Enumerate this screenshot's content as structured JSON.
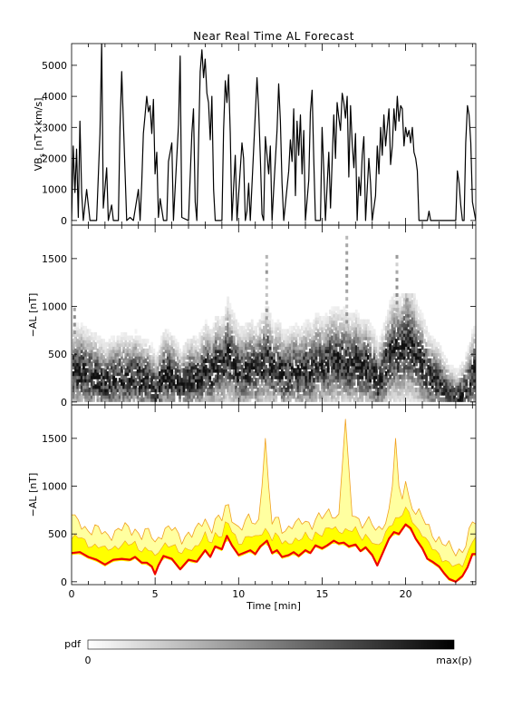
{
  "title": "Near Real Time AL Forecast",
  "chart_data": [
    {
      "type": "line",
      "panel": "vbs",
      "ylabel_main": "VB",
      "ylabel_sub": "s",
      "ylabel_unit": " [nT×km/s]",
      "ylim": [
        -150,
        5700
      ],
      "yticks": [
        0,
        1000,
        2000,
        3000,
        4000,
        5000
      ],
      "xlim": [
        0,
        24.2
      ],
      "series": [
        {
          "values": [
            [
              0,
              0
            ],
            [
              0.1,
              2400
            ],
            [
              0.2,
              900
            ],
            [
              0.3,
              2300
            ],
            [
              0.4,
              100
            ],
            [
              0.5,
              3200
            ],
            [
              0.6,
              900
            ],
            [
              0.7,
              0
            ],
            [
              0.9,
              1000
            ],
            [
              1.1,
              0
            ],
            [
              1.5,
              0
            ],
            [
              1.7,
              2800
            ],
            [
              1.8,
              5700
            ],
            [
              1.9,
              400
            ],
            [
              2.1,
              1700
            ],
            [
              2.2,
              0
            ],
            [
              2.4,
              500
            ],
            [
              2.5,
              0
            ],
            [
              2.8,
              0
            ],
            [
              2.9,
              3000
            ],
            [
              3.0,
              4800
            ],
            [
              3.1,
              3200
            ],
            [
              3.3,
              0
            ],
            [
              3.5,
              100
            ],
            [
              3.7,
              0
            ],
            [
              4.0,
              1000
            ],
            [
              4.1,
              0
            ],
            [
              4.2,
              1200
            ],
            [
              4.3,
              2800
            ],
            [
              4.4,
              3400
            ],
            [
              4.5,
              4000
            ],
            [
              4.6,
              3500
            ],
            [
              4.7,
              3700
            ],
            [
              4.8,
              2800
            ],
            [
              4.9,
              3900
            ],
            [
              5.0,
              1500
            ],
            [
              5.1,
              2200
            ],
            [
              5.2,
              100
            ],
            [
              5.3,
              700
            ],
            [
              5.5,
              0
            ],
            [
              5.7,
              0
            ],
            [
              5.8,
              1900
            ],
            [
              6.0,
              2500
            ],
            [
              6.1,
              0
            ],
            [
              6.4,
              3100
            ],
            [
              6.5,
              5300
            ],
            [
              6.6,
              100
            ],
            [
              7.0,
              0
            ],
            [
              7.2,
              2800
            ],
            [
              7.3,
              3600
            ],
            [
              7.4,
              600
            ],
            [
              7.5,
              0
            ],
            [
              7.7,
              4800
            ],
            [
              7.8,
              5500
            ],
            [
              7.9,
              4600
            ],
            [
              8.0,
              5200
            ],
            [
              8.1,
              4100
            ],
            [
              8.2,
              3800
            ],
            [
              8.3,
              2600
            ],
            [
              8.4,
              4000
            ],
            [
              8.5,
              1000
            ],
            [
              8.6,
              0
            ],
            [
              9.0,
              0
            ],
            [
              9.1,
              2900
            ],
            [
              9.2,
              4500
            ],
            [
              9.3,
              3800
            ],
            [
              9.4,
              4700
            ],
            [
              9.5,
              2800
            ],
            [
              9.6,
              0
            ],
            [
              9.8,
              2100
            ],
            [
              9.9,
              0
            ],
            [
              10.2,
              2500
            ],
            [
              10.3,
              2000
            ],
            [
              10.4,
              0
            ],
            [
              10.5,
              300
            ],
            [
              10.6,
              1200
            ],
            [
              10.7,
              0
            ],
            [
              11.1,
              4600
            ],
            [
              11.2,
              3600
            ],
            [
              11.3,
              2000
            ],
            [
              11.4,
              200
            ],
            [
              11.5,
              0
            ],
            [
              11.6,
              2700
            ],
            [
              11.8,
              1500
            ],
            [
              11.9,
              2400
            ],
            [
              12.0,
              0
            ],
            [
              12.1,
              1000
            ],
            [
              12.3,
              2900
            ],
            [
              12.4,
              4400
            ],
            [
              12.5,
              3200
            ],
            [
              12.6,
              1200
            ],
            [
              12.7,
              0
            ],
            [
              13.0,
              1600
            ],
            [
              13.1,
              2600
            ],
            [
              13.2,
              1900
            ],
            [
              13.3,
              3600
            ],
            [
              13.4,
              800
            ],
            [
              13.5,
              3200
            ],
            [
              13.6,
              2100
            ],
            [
              13.7,
              3400
            ],
            [
              13.8,
              1500
            ],
            [
              13.9,
              2900
            ],
            [
              14.0,
              0
            ],
            [
              14.2,
              1300
            ],
            [
              14.3,
              3500
            ],
            [
              14.4,
              4200
            ],
            [
              14.5,
              2000
            ],
            [
              14.6,
              0
            ],
            [
              14.9,
              0
            ],
            [
              15.0,
              3000
            ],
            [
              15.1,
              1600
            ],
            [
              15.2,
              0
            ],
            [
              15.4,
              2200
            ],
            [
              15.5,
              400
            ],
            [
              15.7,
              3400
            ],
            [
              15.8,
              2000
            ],
            [
              15.9,
              3800
            ],
            [
              16.0,
              3300
            ],
            [
              16.1,
              2900
            ],
            [
              16.2,
              4100
            ],
            [
              16.3,
              3800
            ],
            [
              16.4,
              3300
            ],
            [
              16.5,
              4000
            ],
            [
              16.6,
              1400
            ],
            [
              16.7,
              3700
            ],
            [
              16.8,
              2500
            ],
            [
              16.9,
              1700
            ],
            [
              17.0,
              2800
            ],
            [
              17.1,
              0
            ],
            [
              17.2,
              1400
            ],
            [
              17.3,
              800
            ],
            [
              17.4,
              2100
            ],
            [
              17.5,
              2700
            ],
            [
              17.6,
              0
            ],
            [
              17.8,
              2000
            ],
            [
              17.9,
              1200
            ],
            [
              18.0,
              0
            ],
            [
              18.2,
              800
            ],
            [
              18.3,
              2400
            ],
            [
              18.4,
              1500
            ],
            [
              18.5,
              3000
            ],
            [
              18.6,
              2100
            ],
            [
              18.7,
              3400
            ],
            [
              18.8,
              2400
            ],
            [
              18.9,
              3000
            ],
            [
              19.0,
              3600
            ],
            [
              19.1,
              1800
            ],
            [
              19.2,
              2400
            ],
            [
              19.3,
              3600
            ],
            [
              19.4,
              2900
            ],
            [
              19.5,
              4000
            ],
            [
              19.6,
              3200
            ],
            [
              19.7,
              3700
            ],
            [
              19.8,
              3600
            ],
            [
              19.9,
              2400
            ],
            [
              20.0,
              3000
            ],
            [
              20.1,
              2700
            ],
            [
              20.2,
              2900
            ],
            [
              20.3,
              2500
            ],
            [
              20.4,
              3000
            ],
            [
              20.5,
              2200
            ],
            [
              20.6,
              2000
            ],
            [
              20.7,
              1600
            ],
            [
              20.8,
              0
            ],
            [
              21.3,
              0
            ],
            [
              21.4,
              300
            ],
            [
              21.5,
              0
            ],
            [
              23.0,
              0
            ],
            [
              23.1,
              1600
            ],
            [
              23.2,
              1200
            ],
            [
              23.3,
              500
            ],
            [
              23.4,
              0
            ],
            [
              23.5,
              0
            ],
            [
              23.6,
              2500
            ],
            [
              23.7,
              3700
            ],
            [
              23.8,
              3400
            ],
            [
              23.9,
              2500
            ],
            [
              24.0,
              600
            ],
            [
              24.2,
              0
            ]
          ]
        }
      ]
    },
    {
      "type": "heatmap",
      "panel": "pdf",
      "ylabel": "−AL [nT]",
      "ylim": [
        -30,
        1850
      ],
      "yticks": [
        0,
        500,
        1000,
        1500
      ],
      "xlim": [
        0,
        24.2
      ],
      "colorbar": {
        "label": "pdf",
        "min_label": "0",
        "max_label": "max(p)"
      }
    },
    {
      "type": "area",
      "panel": "forecast",
      "ylabel": "−AL [nT]",
      "xlabel": "Time [min]",
      "ylim": [
        -30,
        1850
      ],
      "yticks": [
        0,
        500,
        1000,
        1500
      ],
      "xticks": [
        0,
        5,
        10,
        15,
        20
      ],
      "xlim": [
        0,
        24.2
      ],
      "colors": {
        "median": "#ee0000",
        "inner": "#ffff00",
        "outer": "#ffffa0",
        "edge": "#f0a020"
      },
      "series": [
        {
          "name": "",
          "values": [
            [
              0,
              300
            ],
            [
              0.5,
              310
            ],
            [
              1.0,
              260
            ],
            [
              1.5,
              230
            ],
            [
              2.0,
              180
            ],
            [
              2.5,
              230
            ],
            [
              3.0,
              240
            ],
            [
              3.5,
              230
            ],
            [
              3.8,
              260
            ],
            [
              4.2,
              200
            ],
            [
              4.5,
              200
            ],
            [
              4.8,
              160
            ],
            [
              5.0,
              80
            ],
            [
              5.2,
              170
            ],
            [
              5.5,
              270
            ],
            [
              6.0,
              240
            ],
            [
              6.5,
              130
            ],
            [
              7.0,
              230
            ],
            [
              7.5,
              210
            ],
            [
              8.0,
              330
            ],
            [
              8.3,
              260
            ],
            [
              8.6,
              370
            ],
            [
              9.0,
              340
            ],
            [
              9.3,
              480
            ],
            [
              9.6,
              380
            ],
            [
              10.0,
              280
            ],
            [
              10.3,
              300
            ],
            [
              10.7,
              330
            ],
            [
              11.0,
              290
            ],
            [
              11.3,
              370
            ],
            [
              11.7,
              430
            ],
            [
              12.0,
              300
            ],
            [
              12.3,
              330
            ],
            [
              12.6,
              260
            ],
            [
              13.0,
              280
            ],
            [
              13.3,
              310
            ],
            [
              13.6,
              270
            ],
            [
              14.0,
              330
            ],
            [
              14.3,
              300
            ],
            [
              14.6,
              380
            ],
            [
              15.0,
              350
            ],
            [
              15.3,
              380
            ],
            [
              15.7,
              430
            ],
            [
              16.0,
              400
            ],
            [
              16.3,
              410
            ],
            [
              16.6,
              370
            ],
            [
              17.0,
              390
            ],
            [
              17.3,
              320
            ],
            [
              17.6,
              360
            ],
            [
              18.0,
              280
            ],
            [
              18.3,
              170
            ],
            [
              18.6,
              290
            ],
            [
              19.0,
              450
            ],
            [
              19.3,
              520
            ],
            [
              19.6,
              500
            ],
            [
              20.0,
              600
            ],
            [
              20.3,
              560
            ],
            [
              20.6,
              450
            ],
            [
              21.0,
              350
            ],
            [
              21.3,
              240
            ],
            [
              21.6,
              210
            ],
            [
              22.0,
              160
            ],
            [
              22.3,
              90
            ],
            [
              22.6,
              30
            ],
            [
              23.0,
              0
            ],
            [
              23.4,
              60
            ],
            [
              23.7,
              150
            ],
            [
              24.0,
              290
            ],
            [
              24.2,
              290
            ]
          ]
        }
      ]
    }
  ]
}
